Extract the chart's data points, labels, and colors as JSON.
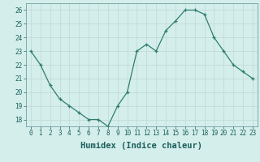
{
  "x": [
    0,
    1,
    2,
    3,
    4,
    5,
    6,
    7,
    8,
    9,
    10,
    11,
    12,
    13,
    14,
    15,
    16,
    17,
    18,
    19,
    20,
    21,
    22,
    23
  ],
  "y": [
    23.0,
    22.0,
    20.5,
    19.5,
    19.0,
    18.5,
    18.0,
    18.0,
    17.5,
    19.0,
    20.0,
    23.0,
    23.5,
    23.0,
    24.5,
    25.2,
    26.0,
    26.0,
    25.7,
    24.0,
    23.0,
    22.0,
    21.5,
    21.0
  ],
  "xlabel": "Humidex (Indice chaleur)",
  "ylim": [
    17.5,
    26.5
  ],
  "xlim": [
    -0.5,
    23.5
  ],
  "yticks": [
    18,
    19,
    20,
    21,
    22,
    23,
    24,
    25,
    26
  ],
  "xticks": [
    0,
    1,
    2,
    3,
    4,
    5,
    6,
    7,
    8,
    9,
    10,
    11,
    12,
    13,
    14,
    15,
    16,
    17,
    18,
    19,
    20,
    21,
    22,
    23
  ],
  "line_color": "#2e7d6e",
  "marker_color": "#2e7d6e",
  "bg_color": "#d4eeec",
  "grid_color": "#c0d8d4",
  "axis_bg": "#d4eeec",
  "tick_label_size": 5.5,
  "xlabel_size": 7.5
}
